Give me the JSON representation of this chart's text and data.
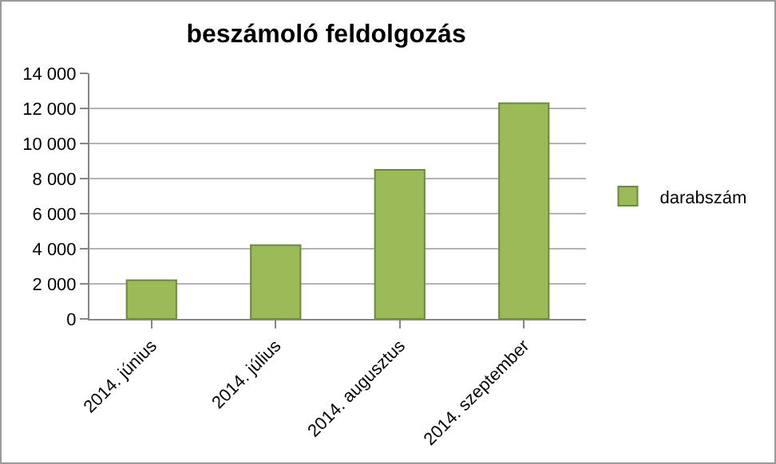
{
  "chart_data": {
    "type": "bar",
    "title": "beszámoló feldolgozás",
    "categories": [
      "2014. június",
      "2014. július",
      "2014. augusztus",
      "2014. szeptember"
    ],
    "series": [
      {
        "name": "darabszám",
        "color": "#9bbb59",
        "values": [
          2200,
          4200,
          8500,
          12300
        ]
      }
    ],
    "ylim": [
      0,
      14000
    ],
    "yticks": [
      {
        "value": 0,
        "label": "0"
      },
      {
        "value": 2000,
        "label": "2 000"
      },
      {
        "value": 4000,
        "label": "4 000"
      },
      {
        "value": 6000,
        "label": "6 000"
      },
      {
        "value": 8000,
        "label": "8 000"
      },
      {
        "value": 10000,
        "label": "10 000"
      },
      {
        "value": 12000,
        "label": "12 000"
      },
      {
        "value": 14000,
        "label": "14 000"
      }
    ],
    "grid": "y",
    "legend": "right"
  }
}
